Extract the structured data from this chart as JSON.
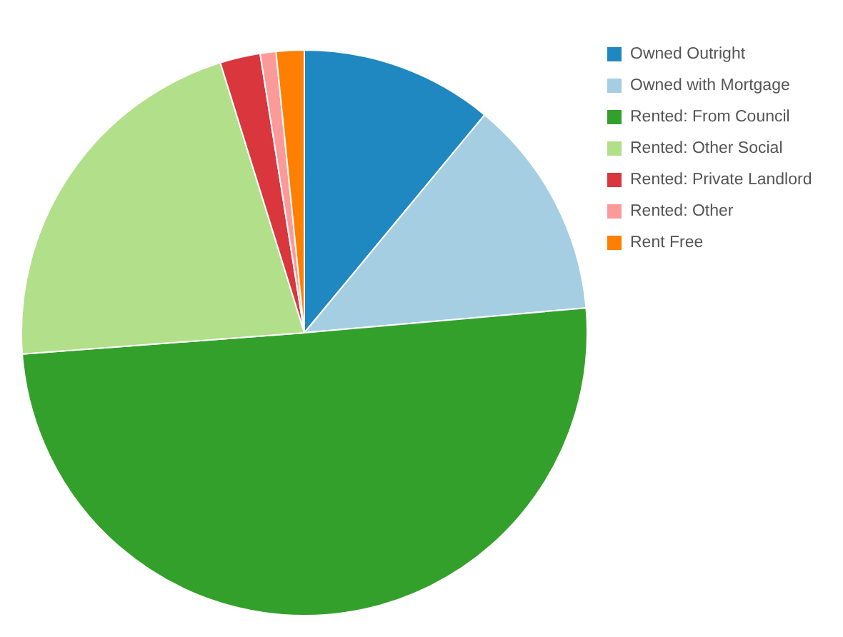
{
  "chart_data": {
    "type": "pie",
    "categories": [
      "Owned Outright",
      "Owned with Mortgage",
      "Rented: From Council",
      "Rented: Other Social",
      "Rented: Private Landlord",
      "Rented: Other",
      "Rent Free"
    ],
    "values": [
      11.0,
      12.6,
      50.2,
      21.4,
      2.3,
      0.9,
      1.6
    ],
    "colors": [
      "#1f88c0",
      "#a6cee3",
      "#33a02c",
      "#b2df8a",
      "#d9363e",
      "#fb9a99",
      "#ff7f00"
    ],
    "legend": "top right"
  }
}
